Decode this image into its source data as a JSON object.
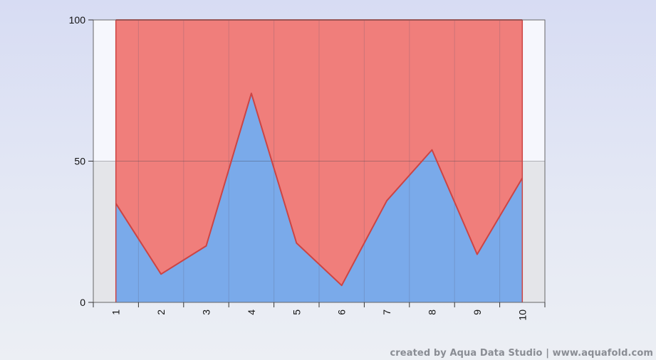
{
  "chart_data": {
    "type": "area",
    "stacked": true,
    "x": [
      1,
      2,
      3,
      4,
      5,
      6,
      7,
      8,
      9,
      10
    ],
    "x_tick_labels": [
      "1",
      "2",
      "3",
      "4",
      "5",
      "6",
      "7",
      "8",
      "9",
      "10"
    ],
    "series": [
      {
        "values": [
          35,
          10,
          20,
          74,
          21,
          6,
          36,
          54,
          17,
          44
        ],
        "color": "#7aaaea"
      },
      {
        "values": [
          65,
          90,
          80,
          26,
          79,
          94,
          64,
          46,
          83,
          56
        ],
        "color": "#f07e7b"
      }
    ],
    "ylim": [
      0,
      100
    ],
    "y_ticks": [
      0,
      50,
      100
    ],
    "y_tick_labels": [
      "0",
      "50",
      "100"
    ],
    "grid": true,
    "colors": {
      "plot_upper_band": "#f6f7fd",
      "plot_lower_band": "#e4e5e9",
      "outline": "#cc4444"
    }
  },
  "watermark": "created by Aqua Data Studio | www.aquafold.com"
}
